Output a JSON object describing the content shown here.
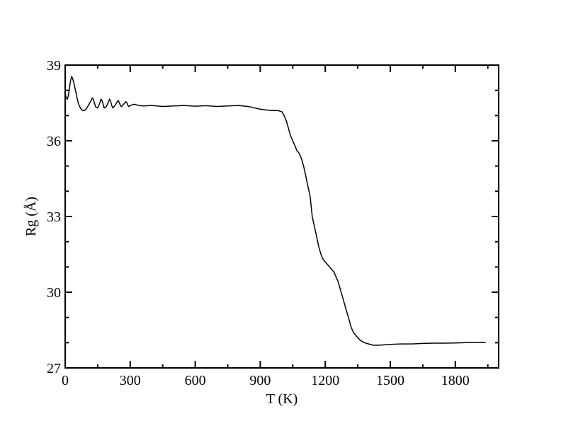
{
  "chart_data": {
    "type": "line",
    "xlabel": "T (K)",
    "ylabel": "Rg (Å)",
    "xlim": [
      0,
      2000
    ],
    "ylim": [
      27,
      39
    ],
    "x_major_ticks": [
      0,
      300,
      600,
      900,
      1200,
      1500,
      1800
    ],
    "x_tick_labels": [
      "0",
      "300",
      "600",
      "900",
      "1200",
      "1500",
      "1800"
    ],
    "y_major_ticks": [
      27,
      30,
      33,
      36,
      39
    ],
    "y_tick_labels": [
      "27",
      "30",
      "33",
      "36",
      "39"
    ],
    "grid": false,
    "legend": "none",
    "series": [
      {
        "color": "#000000",
        "x": [
          0,
          5,
          10,
          15,
          20,
          25,
          30,
          35,
          40,
          45,
          50,
          55,
          60,
          70,
          80,
          90,
          100,
          110,
          120,
          125,
          130,
          135,
          140,
          150,
          160,
          165,
          170,
          175,
          180,
          190,
          200,
          205,
          210,
          215,
          220,
          230,
          240,
          245,
          250,
          255,
          260,
          270,
          280,
          285,
          290,
          295,
          300,
          320,
          340,
          360,
          400,
          450,
          500,
          550,
          600,
          650,
          700,
          750,
          800,
          850,
          900,
          950,
          980,
          1000,
          1010,
          1020,
          1030,
          1040,
          1050,
          1060,
          1070,
          1080,
          1090,
          1100,
          1110,
          1120,
          1130,
          1135,
          1140,
          1150,
          1160,
          1170,
          1180,
          1190,
          1200,
          1210,
          1220,
          1230,
          1240,
          1250,
          1260,
          1270,
          1280,
          1290,
          1300,
          1310,
          1320,
          1330,
          1340,
          1350,
          1360,
          1380,
          1400,
          1420,
          1450,
          1480,
          1500,
          1550,
          1600,
          1650,
          1700,
          1750,
          1800,
          1850,
          1900,
          1940
        ],
        "y": [
          37.9,
          37.7,
          37.65,
          37.8,
          38.1,
          38.4,
          38.55,
          38.45,
          38.3,
          38.1,
          37.9,
          37.7,
          37.5,
          37.3,
          37.2,
          37.2,
          37.3,
          37.45,
          37.6,
          37.7,
          37.65,
          37.5,
          37.35,
          37.3,
          37.5,
          37.65,
          37.6,
          37.45,
          37.3,
          37.35,
          37.55,
          37.65,
          37.55,
          37.4,
          37.3,
          37.4,
          37.55,
          37.6,
          37.5,
          37.4,
          37.35,
          37.45,
          37.55,
          37.5,
          37.4,
          37.35,
          37.4,
          37.45,
          37.4,
          37.38,
          37.4,
          37.36,
          37.38,
          37.4,
          37.37,
          37.39,
          37.36,
          37.38,
          37.4,
          37.35,
          37.25,
          37.2,
          37.2,
          37.15,
          37.0,
          36.8,
          36.5,
          36.2,
          36.0,
          35.8,
          35.6,
          35.5,
          35.3,
          35.0,
          34.6,
          34.2,
          33.8,
          33.4,
          33.0,
          32.6,
          32.2,
          31.8,
          31.5,
          31.3,
          31.2,
          31.1,
          31.0,
          30.9,
          30.8,
          30.6,
          30.4,
          30.1,
          29.8,
          29.5,
          29.2,
          28.9,
          28.6,
          28.4,
          28.3,
          28.2,
          28.1,
          28.0,
          27.95,
          27.9,
          27.9,
          27.92,
          27.93,
          27.95,
          27.95,
          27.97,
          27.98,
          27.98,
          27.99,
          28.0,
          28.0,
          28.0
        ]
      }
    ]
  }
}
